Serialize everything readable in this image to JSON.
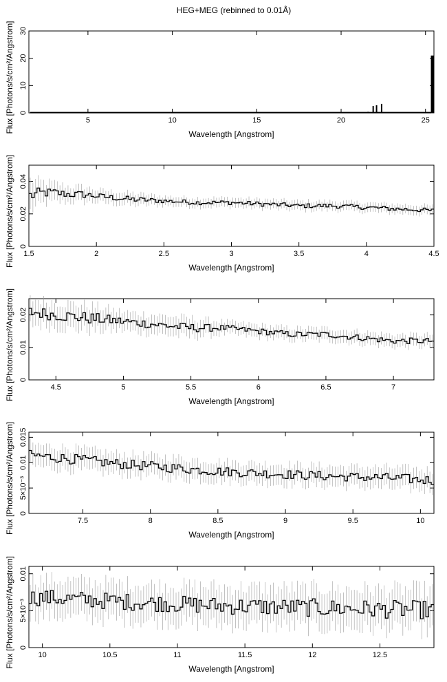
{
  "title": "HEG+MEG (rebinned to 0.01Å)",
  "chart_data": [
    {
      "type": "bar",
      "title": "HEG+MEG (rebinned to 0.01Å)",
      "xlabel": "Wavelength [Angstrom]",
      "ylabel": "Flux [Photons/s/cm²/Angstrom]",
      "xlim": [
        1.5,
        25.5
      ],
      "ylim": [
        0,
        30
      ],
      "xticks": [
        "5",
        "10",
        "15",
        "20",
        "25"
      ],
      "xtick_values": [
        5,
        10,
        15,
        20,
        25
      ],
      "yticks": [
        "0",
        "10",
        "20",
        "30"
      ],
      "ytick_values": [
        0,
        10,
        20,
        30
      ],
      "x": [
        20.5,
        21.6,
        21.9,
        22.1,
        22.4,
        25.4
      ],
      "values": [
        0.2,
        0.4,
        2.5,
        2.8,
        3.3,
        21.0
      ],
      "baseline": 0.1
    },
    {
      "type": "line",
      "xlabel": "Wavelength [Angstrom]",
      "ylabel": "Flux [Photons/s/cm²/Angstrom]",
      "xlim": [
        1.5,
        4.5
      ],
      "ylim": [
        0,
        0.05
      ],
      "xticks": [
        "1.5",
        "2",
        "2.5",
        "3",
        "3.5",
        "4",
        "4.5"
      ],
      "xtick_values": [
        1.5,
        2,
        2.5,
        3,
        3.5,
        4,
        4.5
      ],
      "yticks": [
        "0",
        "0.02",
        "0.04"
      ],
      "ytick_values": [
        0,
        0.02,
        0.04
      ],
      "x": [
        1.5,
        1.6,
        1.7,
        1.8,
        1.9,
        2.0,
        2.25,
        2.5,
        2.75,
        3.0,
        3.25,
        3.5,
        3.75,
        4.0,
        4.25,
        4.5
      ],
      "y": [
        0.031,
        0.033,
        0.033,
        0.032,
        0.032,
        0.031,
        0.029,
        0.028,
        0.027,
        0.027,
        0.026,
        0.025,
        0.025,
        0.024,
        0.023,
        0.022
      ],
      "errors": [
        0.01,
        0.007,
        0.006,
        0.005,
        0.005,
        0.004,
        0.004,
        0.003,
        0.003,
        0.003,
        0.003,
        0.003,
        0.003,
        0.003,
        0.003,
        0.003
      ]
    },
    {
      "type": "line",
      "xlabel": "Wavelength [Angstrom]",
      "ylabel": "Flux [Photons/s/cm²/Angstrom]",
      "xlim": [
        4.3,
        7.3
      ],
      "ylim": [
        0,
        0.025
      ],
      "xticks": [
        "4.5",
        "5",
        "5.5",
        "6",
        "6.5",
        "7"
      ],
      "xtick_values": [
        4.5,
        5,
        5.5,
        6,
        6.5,
        7
      ],
      "yticks": [
        "0",
        "0.01",
        "0.02"
      ],
      "ytick_values": [
        0,
        0.01,
        0.02
      ],
      "x": [
        4.3,
        4.5,
        4.75,
        5.0,
        5.25,
        5.5,
        5.75,
        6.0,
        6.25,
        6.5,
        6.75,
        7.0,
        7.3
      ],
      "y": [
        0.021,
        0.02,
        0.019,
        0.018,
        0.017,
        0.016,
        0.016,
        0.015,
        0.014,
        0.014,
        0.013,
        0.012,
        0.012
      ],
      "errors": [
        0.004,
        0.004,
        0.004,
        0.003,
        0.003,
        0.003,
        0.002,
        0.002,
        0.002,
        0.002,
        0.002,
        0.002,
        0.002
      ]
    },
    {
      "type": "line",
      "xlabel": "Wavelength [Angstrom]",
      "ylabel": "Flux [Photons/s/cm²/Angstrom]",
      "xlim": [
        7.1,
        10.1
      ],
      "ylim": [
        0,
        0.016
      ],
      "xticks": [
        "7.5",
        "8",
        "8.5",
        "9",
        "9.5",
        "10"
      ],
      "xtick_values": [
        7.5,
        8,
        8.5,
        9,
        9.5,
        10
      ],
      "yticks": [
        "0",
        "5×10⁻³",
        "0.01",
        "0.015"
      ],
      "ytick_values": [
        0,
        0.005,
        0.01,
        0.015
      ],
      "x": [
        7.1,
        7.3,
        7.5,
        7.75,
        8.0,
        8.25,
        8.5,
        8.75,
        9.0,
        9.25,
        9.5,
        9.75,
        10.1
      ],
      "y": [
        0.0115,
        0.011,
        0.0105,
        0.0098,
        0.0093,
        0.0088,
        0.0083,
        0.008,
        0.0077,
        0.0074,
        0.0072,
        0.007,
        0.0065
      ],
      "errors": [
        0.0022,
        0.0022,
        0.0022,
        0.0021,
        0.0021,
        0.0021,
        0.002,
        0.002,
        0.002,
        0.002,
        0.002,
        0.0021,
        0.0021
      ]
    },
    {
      "type": "line",
      "xlabel": "Wavelength [Angstrom]",
      "ylabel": "Flux [Photons/s/cm²/Angstrom]",
      "xlim": [
        9.9,
        12.9
      ],
      "ylim": [
        0,
        0.011
      ],
      "xticks": [
        "10",
        "10.5",
        "11",
        "11.5",
        "12",
        "12.5"
      ],
      "xtick_values": [
        10,
        10.5,
        11,
        11.5,
        12,
        12.5
      ],
      "yticks": [
        "0",
        "5×10⁻³",
        "0.01"
      ],
      "ytick_values": [
        0,
        0.005,
        0.01
      ],
      "x": [
        9.9,
        10.1,
        10.3,
        10.5,
        10.75,
        11.0,
        11.25,
        11.5,
        11.75,
        12.0,
        12.25,
        12.5,
        12.9
      ],
      "y": [
        0.0068,
        0.0067,
        0.0065,
        0.0063,
        0.0061,
        0.0059,
        0.0057,
        0.0056,
        0.0055,
        0.0054,
        0.0053,
        0.0052,
        0.0051
      ],
      "errors": [
        0.0025,
        0.0025,
        0.0025,
        0.0025,
        0.0025,
        0.0025,
        0.0026,
        0.0026,
        0.0026,
        0.0027,
        0.0027,
        0.0027,
        0.0028
      ]
    }
  ]
}
